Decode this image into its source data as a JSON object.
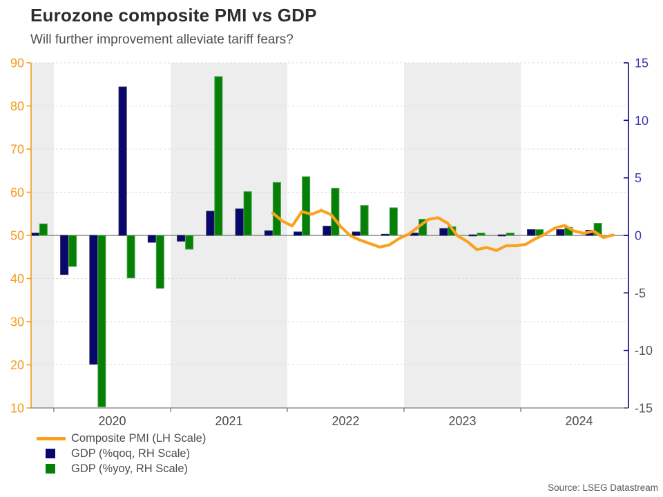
{
  "header": {
    "title": "Eurozone composite PMI vs GDP",
    "subtitle": "Will further improvement alleviate tariff fears?"
  },
  "source": "Source: LSEG Datastream",
  "legend": {
    "items": [
      {
        "label": "Composite PMI (LH Scale)",
        "swatch": "line",
        "color": "#F9A11B"
      },
      {
        "label": "GDP (%qoq, RH Scale)",
        "swatch": "square",
        "color": "#07076E"
      },
      {
        "label": "GDP (%yoy, RH Scale)",
        "swatch": "square",
        "color": "#067F06"
      }
    ]
  },
  "chart_data": {
    "type": "bar",
    "subtype": "dual-axis combo: quarterly GDP bars (right axis) + monthly composite PMI line (left axis)",
    "title": "Eurozone composite PMI vs GDP",
    "subtitle": "Will further improvement alleviate tariff fears?",
    "left_axis": {
      "series": "Composite PMI",
      "range": [
        10,
        90
      ],
      "ticks": [
        90,
        80,
        70,
        60,
        50,
        40,
        30,
        20,
        10
      ],
      "color": "#F59A18"
    },
    "right_axis": {
      "series": "GDP %",
      "range": [
        -15,
        15
      ],
      "ticks": [
        15,
        10,
        5,
        0,
        -5,
        -10,
        -15
      ],
      "color": "#00017B",
      "positive_label_color": "#3B3BAF",
      "negative_label_color": "#565656"
    },
    "x_axis": {
      "year_ticks": [
        2020,
        2021,
        2022,
        2023,
        2024
      ],
      "year_labels": [
        "2020",
        "2021",
        "2022",
        "2023",
        "2024"
      ],
      "shaded_years": [
        2019,
        2021,
        2023
      ],
      "label_color": "#494949",
      "band_color": "#EDEDED",
      "axis_color": "#7A7A7A"
    },
    "grid": {
      "style": "dashed",
      "lines_at_left_values": [
        90,
        80,
        70,
        60,
        40,
        30,
        20
      ],
      "color": "#DCDCDC",
      "zero_line_color": "#8A8A8A"
    },
    "gdp_bars": {
      "categories": [
        "2019-Q4",
        "2020-Q1",
        "2020-Q2",
        "2020-Q3",
        "2020-Q4",
        "2021-Q1",
        "2021-Q2",
        "2021-Q3",
        "2021-Q4",
        "2022-Q1",
        "2022-Q2",
        "2022-Q3",
        "2022-Q4",
        "2023-Q1",
        "2023-Q2",
        "2023-Q3",
        "2023-Q4",
        "2024-Q1",
        "2024-Q2",
        "2024-Q3"
      ],
      "series": [
        {
          "name": "GDP (%qoq, RH Scale)",
          "axis": "right",
          "color": "#07076E",
          "edge_color": "#23234A",
          "values": [
            0.2,
            -3.4,
            -11.2,
            12.9,
            -0.6,
            -0.5,
            2.1,
            2.3,
            0.4,
            0.3,
            0.8,
            0.3,
            0.1,
            0.2,
            0.6,
            0.0,
            0.0,
            0.5,
            0.5,
            0.45
          ]
        },
        {
          "name": "GDP (%yoy, RH Scale)",
          "axis": "right",
          "color": "#067F06",
          "edge_color": "#46A046",
          "values": [
            1.0,
            -2.7,
            -14.9,
            -3.7,
            -4.6,
            -1.2,
            13.8,
            3.8,
            4.6,
            5.1,
            4.1,
            2.6,
            2.4,
            1.4,
            0.75,
            0.2,
            0.2,
            0.5,
            0.7,
            1.05
          ]
        }
      ]
    },
    "pmi_line": {
      "name": "Composite PMI (LH Scale)",
      "axis": "left",
      "color": "#FAA21D",
      "frequency": "monthly",
      "start_month": "2021-11",
      "end_month": "2024-10",
      "values": [
        55.2,
        53.3,
        52.2,
        55.5,
        54.9,
        55.8,
        54.8,
        52.0,
        49.9,
        48.9,
        48.1,
        47.3,
        47.8,
        49.3,
        50.3,
        52.0,
        53.7,
        54.1,
        52.8,
        49.9,
        48.6,
        46.7,
        47.2,
        46.5,
        47.6,
        47.6,
        47.9,
        49.2,
        50.3,
        51.7,
        52.3,
        51.0,
        50.5,
        51.0,
        49.5,
        50.1
      ]
    }
  }
}
